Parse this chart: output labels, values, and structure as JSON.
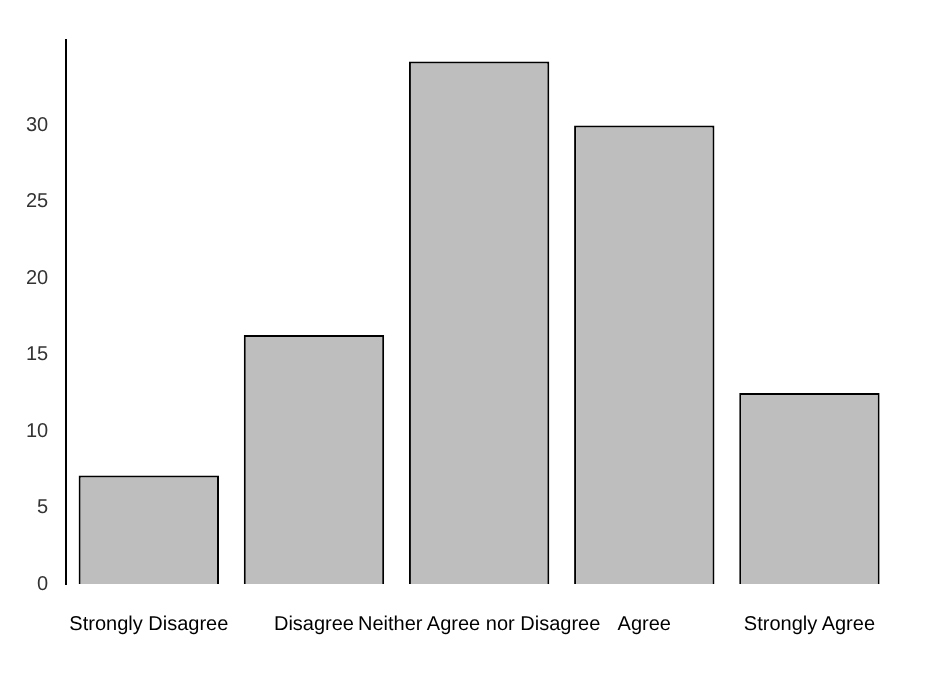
{
  "chart_data": {
    "type": "bar",
    "categories": [
      "Strongly Disagree",
      "Disagree",
      "Neither Agree nor Disagree",
      "Agree",
      "Strongly Agree"
    ],
    "values": [
      7.1,
      16.3,
      34.2,
      30.0,
      12.5
    ],
    "color": "#bebebe",
    "ylim": [
      0,
      35.6
    ],
    "yticks": [
      0,
      5,
      10,
      15,
      20,
      25,
      30
    ],
    "grid": false,
    "legend": false
  }
}
